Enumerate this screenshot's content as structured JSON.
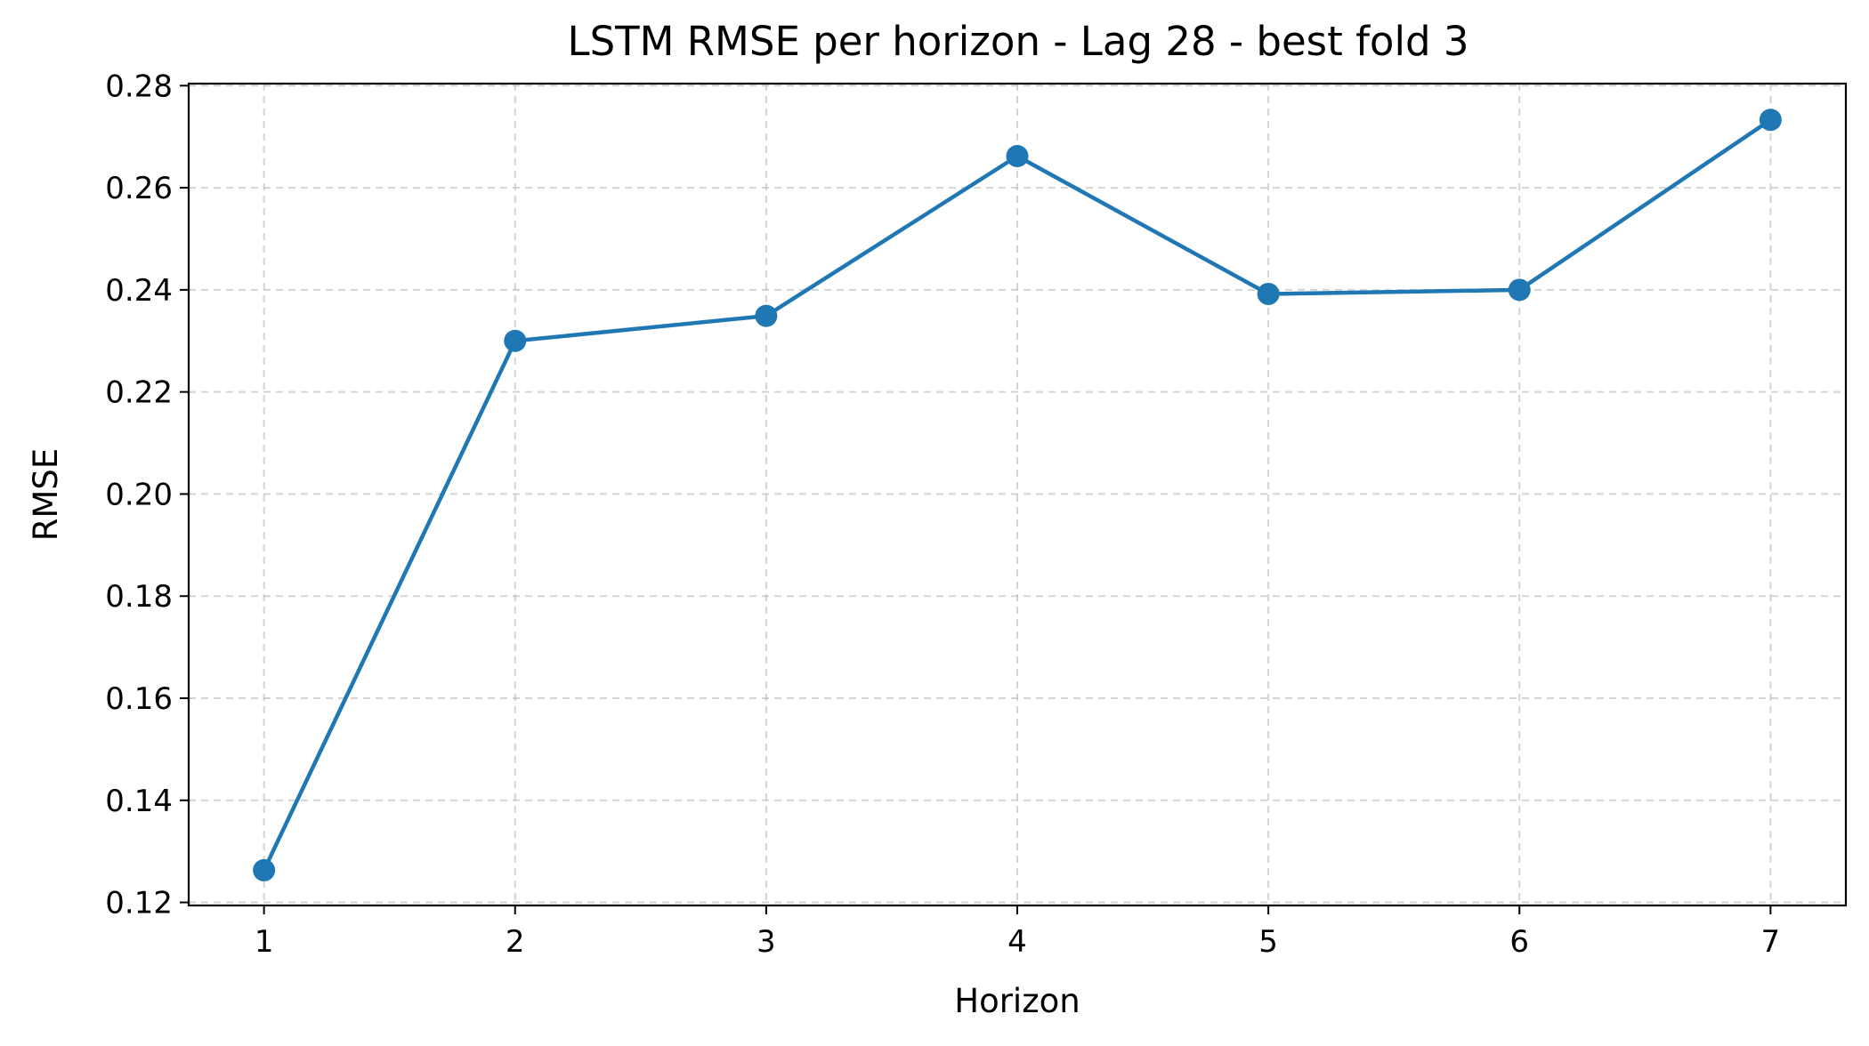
{
  "chart_data": {
    "type": "line",
    "title": "LSTM RMSE per horizon - Lag 28 - best fold 3",
    "xlabel": "Horizon",
    "ylabel": "RMSE",
    "x": [
      1,
      2,
      3,
      4,
      5,
      6,
      7
    ],
    "xticks": [
      "1",
      "2",
      "3",
      "4",
      "5",
      "6",
      "7"
    ],
    "xlim": [
      0.7,
      7.3
    ],
    "yticks": [
      "0.12",
      "0.14",
      "0.16",
      "0.18",
      "0.20",
      "0.22",
      "0.24",
      "0.26",
      "0.28"
    ],
    "ylim": [
      0.1194,
      0.2804
    ],
    "grid": true,
    "series": [
      {
        "values": [
          0.1263,
          0.23,
          0.2349,
          0.2662,
          0.2392,
          0.24,
          0.2733
        ],
        "color": "#1f77b4",
        "marker": "circle"
      }
    ]
  }
}
